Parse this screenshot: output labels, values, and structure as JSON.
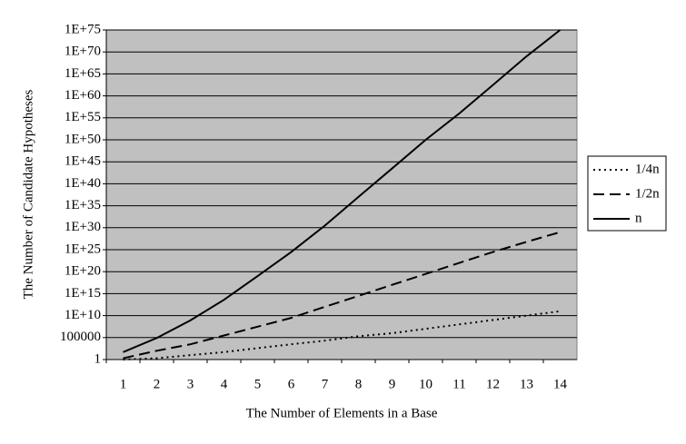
{
  "chart_data": {
    "type": "line",
    "x_label": "The Number of Elements in a Base",
    "y_label": "The Number of Candidate Hypotheses",
    "categories": [
      "1",
      "2",
      "3",
      "4",
      "5",
      "6",
      "7",
      "8",
      "9",
      "10",
      "11",
      "12",
      "13",
      "14"
    ],
    "series": [
      {
        "name": "1/4n",
        "color": "#000000",
        "dash": "dotted",
        "values": [
          1,
          2,
          10,
          50,
          400,
          3000,
          20000,
          200000,
          1000000,
          10000000.0,
          100000000.0,
          1000000000.0,
          10000000000.0,
          100000000000.0
        ]
      },
      {
        "name": "1/2n",
        "color": "#000000",
        "dash": "dashed",
        "values": [
          2,
          100,
          3000,
          300000,
          30000000.0,
          3000000000.0,
          1000000000000.0,
          300000000000000.0,
          1e+17,
          3e+19,
          1e+22,
          3e+24,
          6e+26,
          1e+29
        ]
      },
      {
        "name": "n",
        "color": "#000000",
        "dash": "solid",
        "values": [
          50,
          80000,
          800000000.0,
          40000000000000.0,
          1e+19,
          3e+24,
          3e+30,
          1e+37,
          3e+43,
          1e+50,
          1e+56,
          3e+62,
          1e+69,
          1e+75
        ]
      }
    ],
    "log_scale_y": true,
    "ylim": [
      1,
      1e+75
    ],
    "yticks": [
      1,
      100000,
      {
        "value": 10000000000.0,
        "label": "1E+10"
      },
      {
        "value": 1000000000000000.0,
        "label": "1E+15"
      },
      {
        "value": 1e+20,
        "label": "1E+20"
      },
      {
        "value": 1e+25,
        "label": "1E+25"
      },
      {
        "value": 1e+30,
        "label": "1E+30"
      },
      {
        "value": 1e+35,
        "label": "1E+35"
      },
      {
        "value": 1e+40,
        "label": "1E+40"
      },
      {
        "value": 1e+45,
        "label": "1E+45"
      },
      {
        "value": 1e+50,
        "label": "1E+50"
      },
      {
        "value": 1e+55,
        "label": "1E+55"
      },
      {
        "value": 1e+60,
        "label": "1E+60"
      },
      {
        "value": 1e+65,
        "label": "1E+65"
      },
      {
        "value": 1e+70,
        "label": "1E+70"
      },
      {
        "value": 1e+75,
        "label": "1E+75"
      }
    ],
    "grid": true,
    "plot_background": "#c0c0c0",
    "legend_position": "right"
  }
}
